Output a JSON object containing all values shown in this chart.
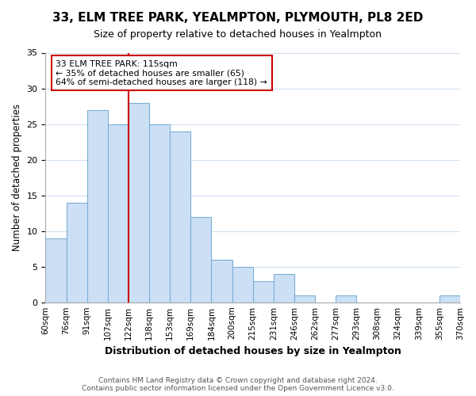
{
  "title": "33, ELM TREE PARK, YEALMPTON, PLYMOUTH, PL8 2ED",
  "subtitle": "Size of property relative to detached houses in Yealmpton",
  "xlabel": "Distribution of detached houses by size in Yealmpton",
  "ylabel": "Number of detached properties",
  "bar_labels": [
    "60sqm",
    "76sqm",
    "91sqm",
    "107sqm",
    "122sqm",
    "138sqm",
    "153sqm",
    "169sqm",
    "184sqm",
    "200sqm",
    "215sqm",
    "231sqm",
    "246sqm",
    "262sqm",
    "277sqm",
    "293sqm",
    "308sqm",
    "324sqm",
    "339sqm",
    "355sqm",
    "370sqm"
  ],
  "bar_heights": [
    9,
    14,
    27,
    25,
    28,
    25,
    24,
    12,
    6,
    5,
    3,
    4,
    1,
    0,
    1,
    0,
    0,
    0,
    0,
    1
  ],
  "bar_color": "#cce0f5",
  "bar_edge_color": "#7bafd4",
  "reference_line_x": 4,
  "reference_line_color": "#cc0000",
  "ylim": [
    0,
    35
  ],
  "yticks": [
    0,
    5,
    10,
    15,
    20,
    25,
    30,
    35
  ],
  "annotation_title": "33 ELM TREE PARK: 115sqm",
  "annotation_line1": "← 35% of detached houses are smaller (65)",
  "annotation_line2": "64% of semi-detached houses are larger (118) →",
  "annotation_box_facecolor": "#ffffff",
  "annotation_box_edgecolor": "#cc0000",
  "footnote1": "Contains HM Land Registry data © Crown copyright and database right 2024.",
  "footnote2": "Contains public sector information licensed under the Open Government Licence v3.0.",
  "bg_color": "#ffffff",
  "grid_color": "#d0dff0"
}
